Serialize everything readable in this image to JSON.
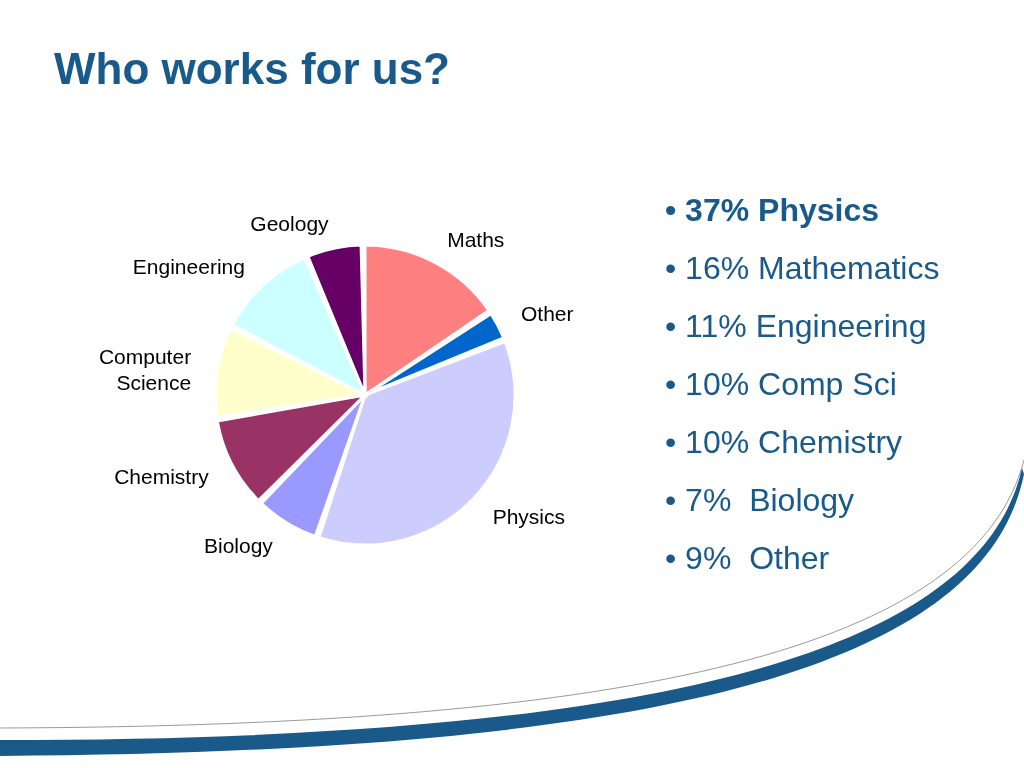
{
  "chart_data": {
    "type": "pie",
    "title": "Who works for us?",
    "categories": [
      "Maths",
      "Other",
      "Physics",
      "Biology",
      "Chemistry",
      "Computer Science",
      "Engineering",
      "Geology"
    ],
    "values": [
      16,
      3,
      37,
      7,
      10,
      10,
      11,
      6
    ],
    "colors": [
      "#ff8080",
      "#0066cc",
      "#ccccff",
      "#9999ff",
      "#993366",
      "#ffffcc",
      "#ccffff",
      "#660066"
    ],
    "annotations": [
      "• 37% Physics",
      "• 16% Mathematics",
      "• 11% Engineering",
      "• 10% Comp Sci",
      "• 10% Chemistry",
      "• 7%  Biology",
      "• 9%  Other"
    ],
    "legend": false
  }
}
